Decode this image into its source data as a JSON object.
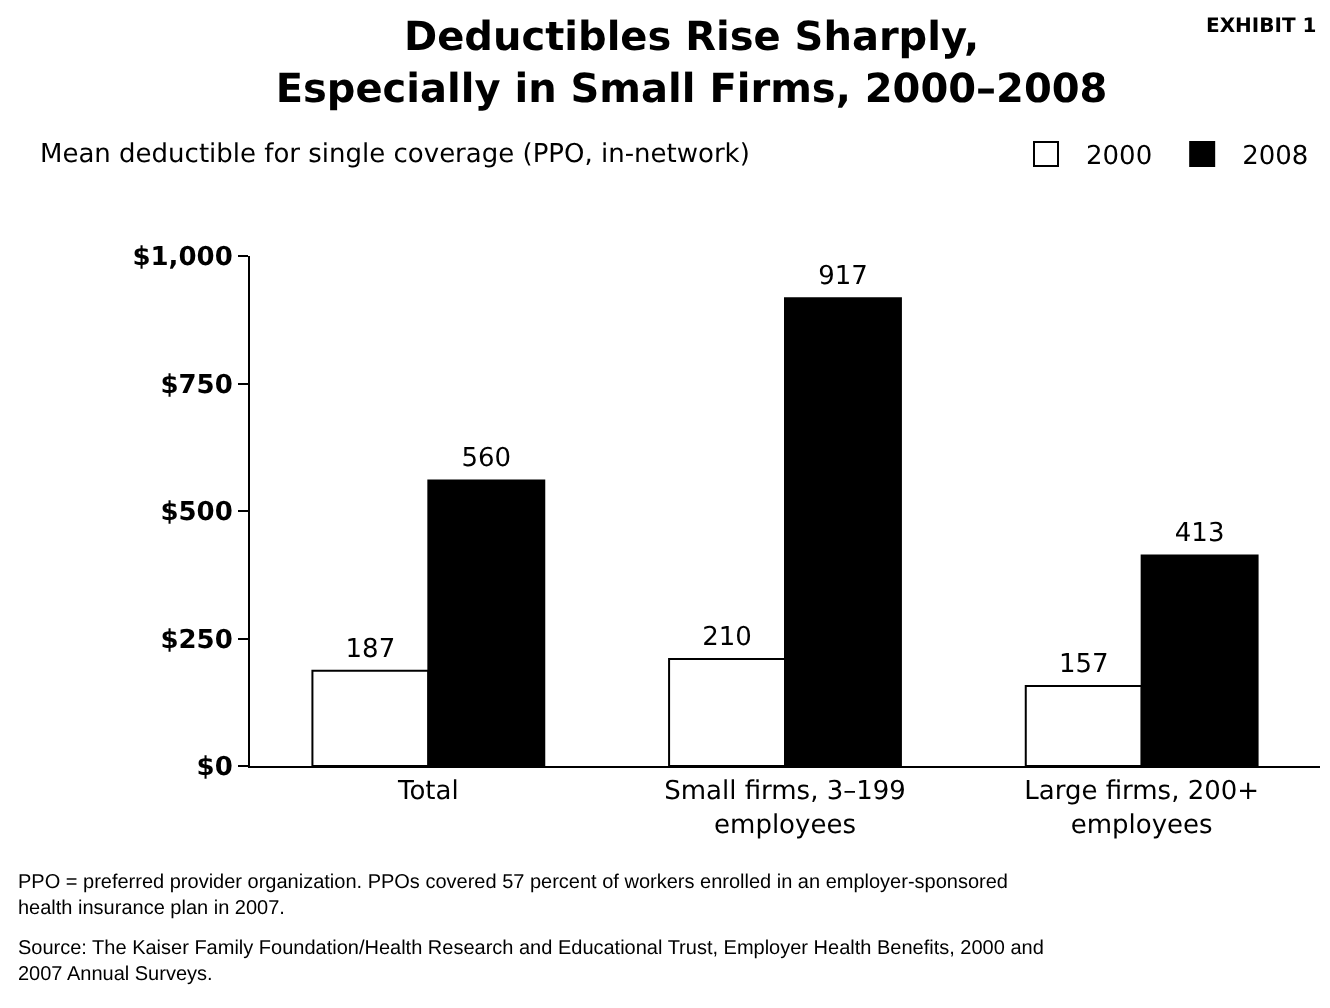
{
  "chart_data": {
    "type": "bar",
    "title": "Deductibles Rise Sharply,\nEspecially in Small Firms, 2000–2008",
    "subtitle": "Mean deductible for single coverage (PPO, in-network)",
    "categories": [
      "Total",
      "Small firms, 3–199 employees",
      "Large firms, 200+ employees"
    ],
    "series": [
      {
        "name": "2000",
        "color": "#ffffff",
        "values": [
          187,
          210,
          157
        ]
      },
      {
        "name": "2008",
        "color": "#000000",
        "values": [
          560,
          917,
          413
        ]
      }
    ],
    "ylim": [
      0,
      1000
    ],
    "yticks": [
      {
        "value": 0,
        "label": "$0"
      },
      {
        "value": 250,
        "label": "$250"
      },
      {
        "value": 500,
        "label": "$500"
      },
      {
        "value": 750,
        "label": "$750"
      },
      {
        "value": 1000,
        "label": "$1,000"
      }
    ],
    "grid": false,
    "legend": "top right",
    "data_labels": true,
    "annotations": [
      "EXHIBIT 1",
      "PPO = preferred provider organization. PPOs covered 57 percent of workers enrolled in an employer-sponsored health insurance plan in 2007.",
      "Source: The Kaiser Family Foundation/Health Research and Educational Trust, Employer Health Benefits, 2000 and 2007 Annual Surveys."
    ]
  }
}
